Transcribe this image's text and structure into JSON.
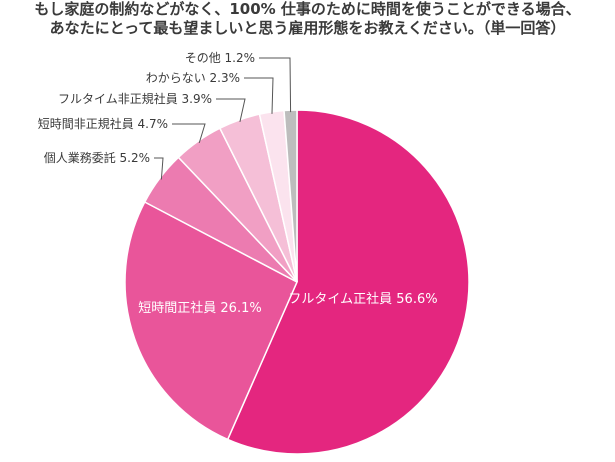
{
  "title": {
    "line1": "もし家庭の制約などがなく、100% 仕事のために時間を使うことができる場合、",
    "line2": "あなたにとって最も望ましいと思う雇用形態をお教えください。（単一回答）"
  },
  "chart_data": {
    "type": "pie",
    "title": "もし家庭の制約などがなく、100% 仕事のために時間を使うことができる場合、あなたにとって最も望ましいと思う雇用形態をお教えください。（単一回答）",
    "start": "12 o'clock",
    "direction": "clockwise",
    "slices": [
      {
        "label": "フルタイム正社員",
        "value": 56.6,
        "text": "フルタイム正社員 56.6%",
        "color": "#e4267f"
      },
      {
        "label": "短時間正社員",
        "value": 26.1,
        "text": "短時間正社員 26.1%",
        "color": "#e9559a"
      },
      {
        "label": "個人業務委託",
        "value": 5.2,
        "text": "個人業務委託 5.2%",
        "color": "#ec7bb0"
      },
      {
        "label": "短時間非正規社員",
        "value": 4.7,
        "text": "短時間非正規社員 4.7%",
        "color": "#f19fc4"
      },
      {
        "label": "フルタイム非正規社員",
        "value": 3.9,
        "text": "フルタイム非正規社員 3.9%",
        "color": "#f5bfd7"
      },
      {
        "label": "わからない",
        "value": 2.3,
        "text": "わからない 2.3%",
        "color": "#fbe3ee"
      },
      {
        "label": "その他",
        "value": 1.2,
        "text": "その他 1.2%",
        "color": "#bdbdbd"
      }
    ]
  }
}
